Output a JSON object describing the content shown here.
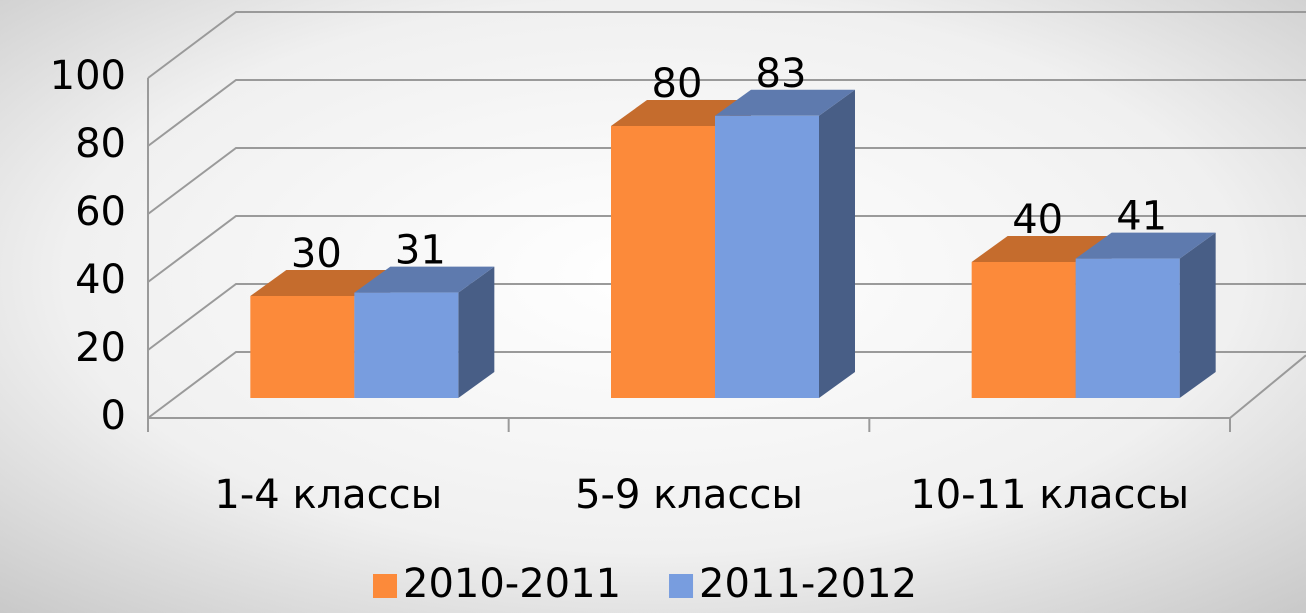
{
  "chart_data": {
    "type": "bar3d",
    "categories": [
      "1-4 классы",
      "5-9 классы",
      "10-11 классы"
    ],
    "series": [
      {
        "name": "2010-2011",
        "color": "#fc8a3a",
        "values": [
          30,
          80,
          40
        ]
      },
      {
        "name": "2011-2012",
        "color": "#789ddf",
        "values": [
          31,
          83,
          41
        ]
      }
    ],
    "ylim": [
      0,
      100
    ],
    "yticks": [
      0,
      20,
      40,
      60,
      80,
      100
    ],
    "grid": true,
    "legend": "bottom"
  }
}
